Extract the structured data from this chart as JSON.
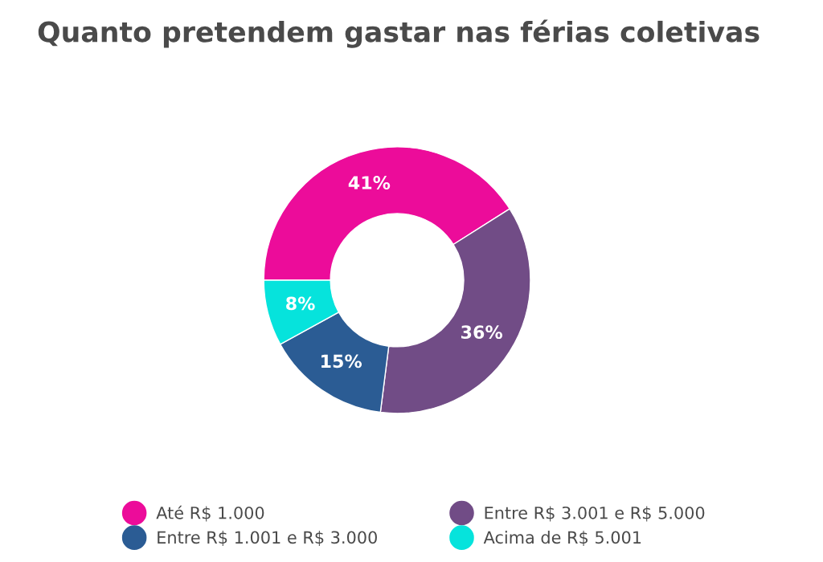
{
  "chart_data": {
    "type": "donut",
    "title": "Quanto pretendem gastar nas férias coletivas",
    "categories": [
      "Até R$ 1.000",
      "Entre R$ 3.001 e R$ 5.000",
      "Entre R$ 1.001 e R$ 3.000",
      "Acima de R$ 5.001"
    ],
    "values": [
      41,
      36,
      15,
      8
    ],
    "colors": [
      "#ec0c9a",
      "#714c86",
      "#2b5c94",
      "#06e3dc"
    ],
    "value_labels": [
      "41%",
      "36%",
      "15%",
      "8%"
    ],
    "legend": "bottom"
  }
}
